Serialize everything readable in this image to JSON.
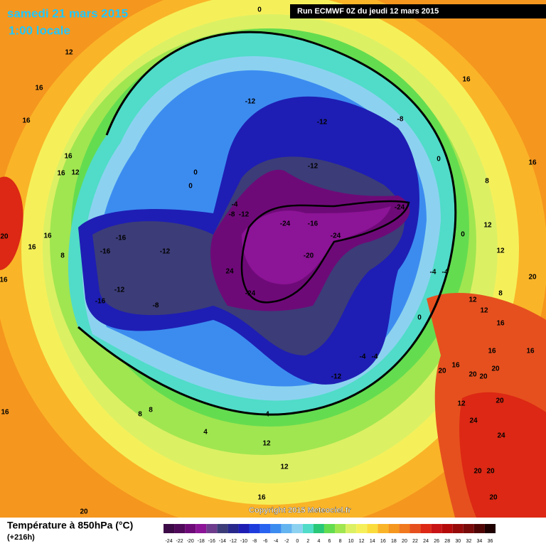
{
  "header": {
    "date": "samedi 21 mars 2015",
    "time": "1:00 locale",
    "run": "Run ECMWF 0Z du jeudi 12 mars 2015"
  },
  "footer": {
    "title": "Température à 850hPa (°C)",
    "lead": "(+216h)",
    "copyright": "Copyright 2015 Meteociel.fr"
  },
  "colorbar": {
    "ticks": [
      -24,
      -22,
      -20,
      -18,
      -16,
      -14,
      -12,
      -10,
      -8,
      -6,
      -4,
      -2,
      0,
      2,
      4,
      6,
      8,
      10,
      12,
      14,
      16,
      18,
      20,
      22,
      24,
      26,
      28,
      30,
      32,
      34,
      36
    ],
    "colors": [
      "#3c0a46",
      "#500a5a",
      "#6e0a78",
      "#8c1496",
      "#6e3c8c",
      "#3c3c78",
      "#28288c",
      "#1e1eb4",
      "#1e3cdc",
      "#2864f0",
      "#3c8cf0",
      "#64b4f0",
      "#8cd2f0",
      "#50dcc8",
      "#28c878",
      "#64dc50",
      "#a0e650",
      "#dcf064",
      "#f5f05a",
      "#fadc3c",
      "#fab428",
      "#f5961e",
      "#f0781e",
      "#e6501e",
      "#dc2814",
      "#c81414",
      "#b40a0a",
      "#960a0a",
      "#780a0a",
      "#500505",
      "#1e0000"
    ]
  },
  "map_labels": [
    "0",
    "12",
    "16",
    "16",
    "-12",
    "-12",
    "-8",
    "16",
    "16",
    "16",
    "16",
    "12",
    "0",
    "0",
    "-4",
    "-8",
    "-12",
    "-12",
    "0",
    "8",
    "-24",
    "-24",
    "-16",
    "-24",
    "-20",
    "20",
    "16",
    "16",
    "8",
    "-16",
    "-16",
    "-12",
    "24",
    "-24",
    "-12",
    "-16",
    "-8",
    "16",
    "0",
    "12",
    "12",
    "-4",
    "-4",
    "8",
    "12",
    "12",
    "16",
    "0",
    "-4",
    "-4",
    "-12",
    "20",
    "16",
    "20",
    "20",
    "16",
    "16",
    "20",
    "12",
    "20",
    "24",
    "24",
    "20",
    "20",
    "16",
    "8",
    "8",
    "4",
    "4",
    "12",
    "12",
    "16",
    "20",
    "20",
    "20"
  ]
}
